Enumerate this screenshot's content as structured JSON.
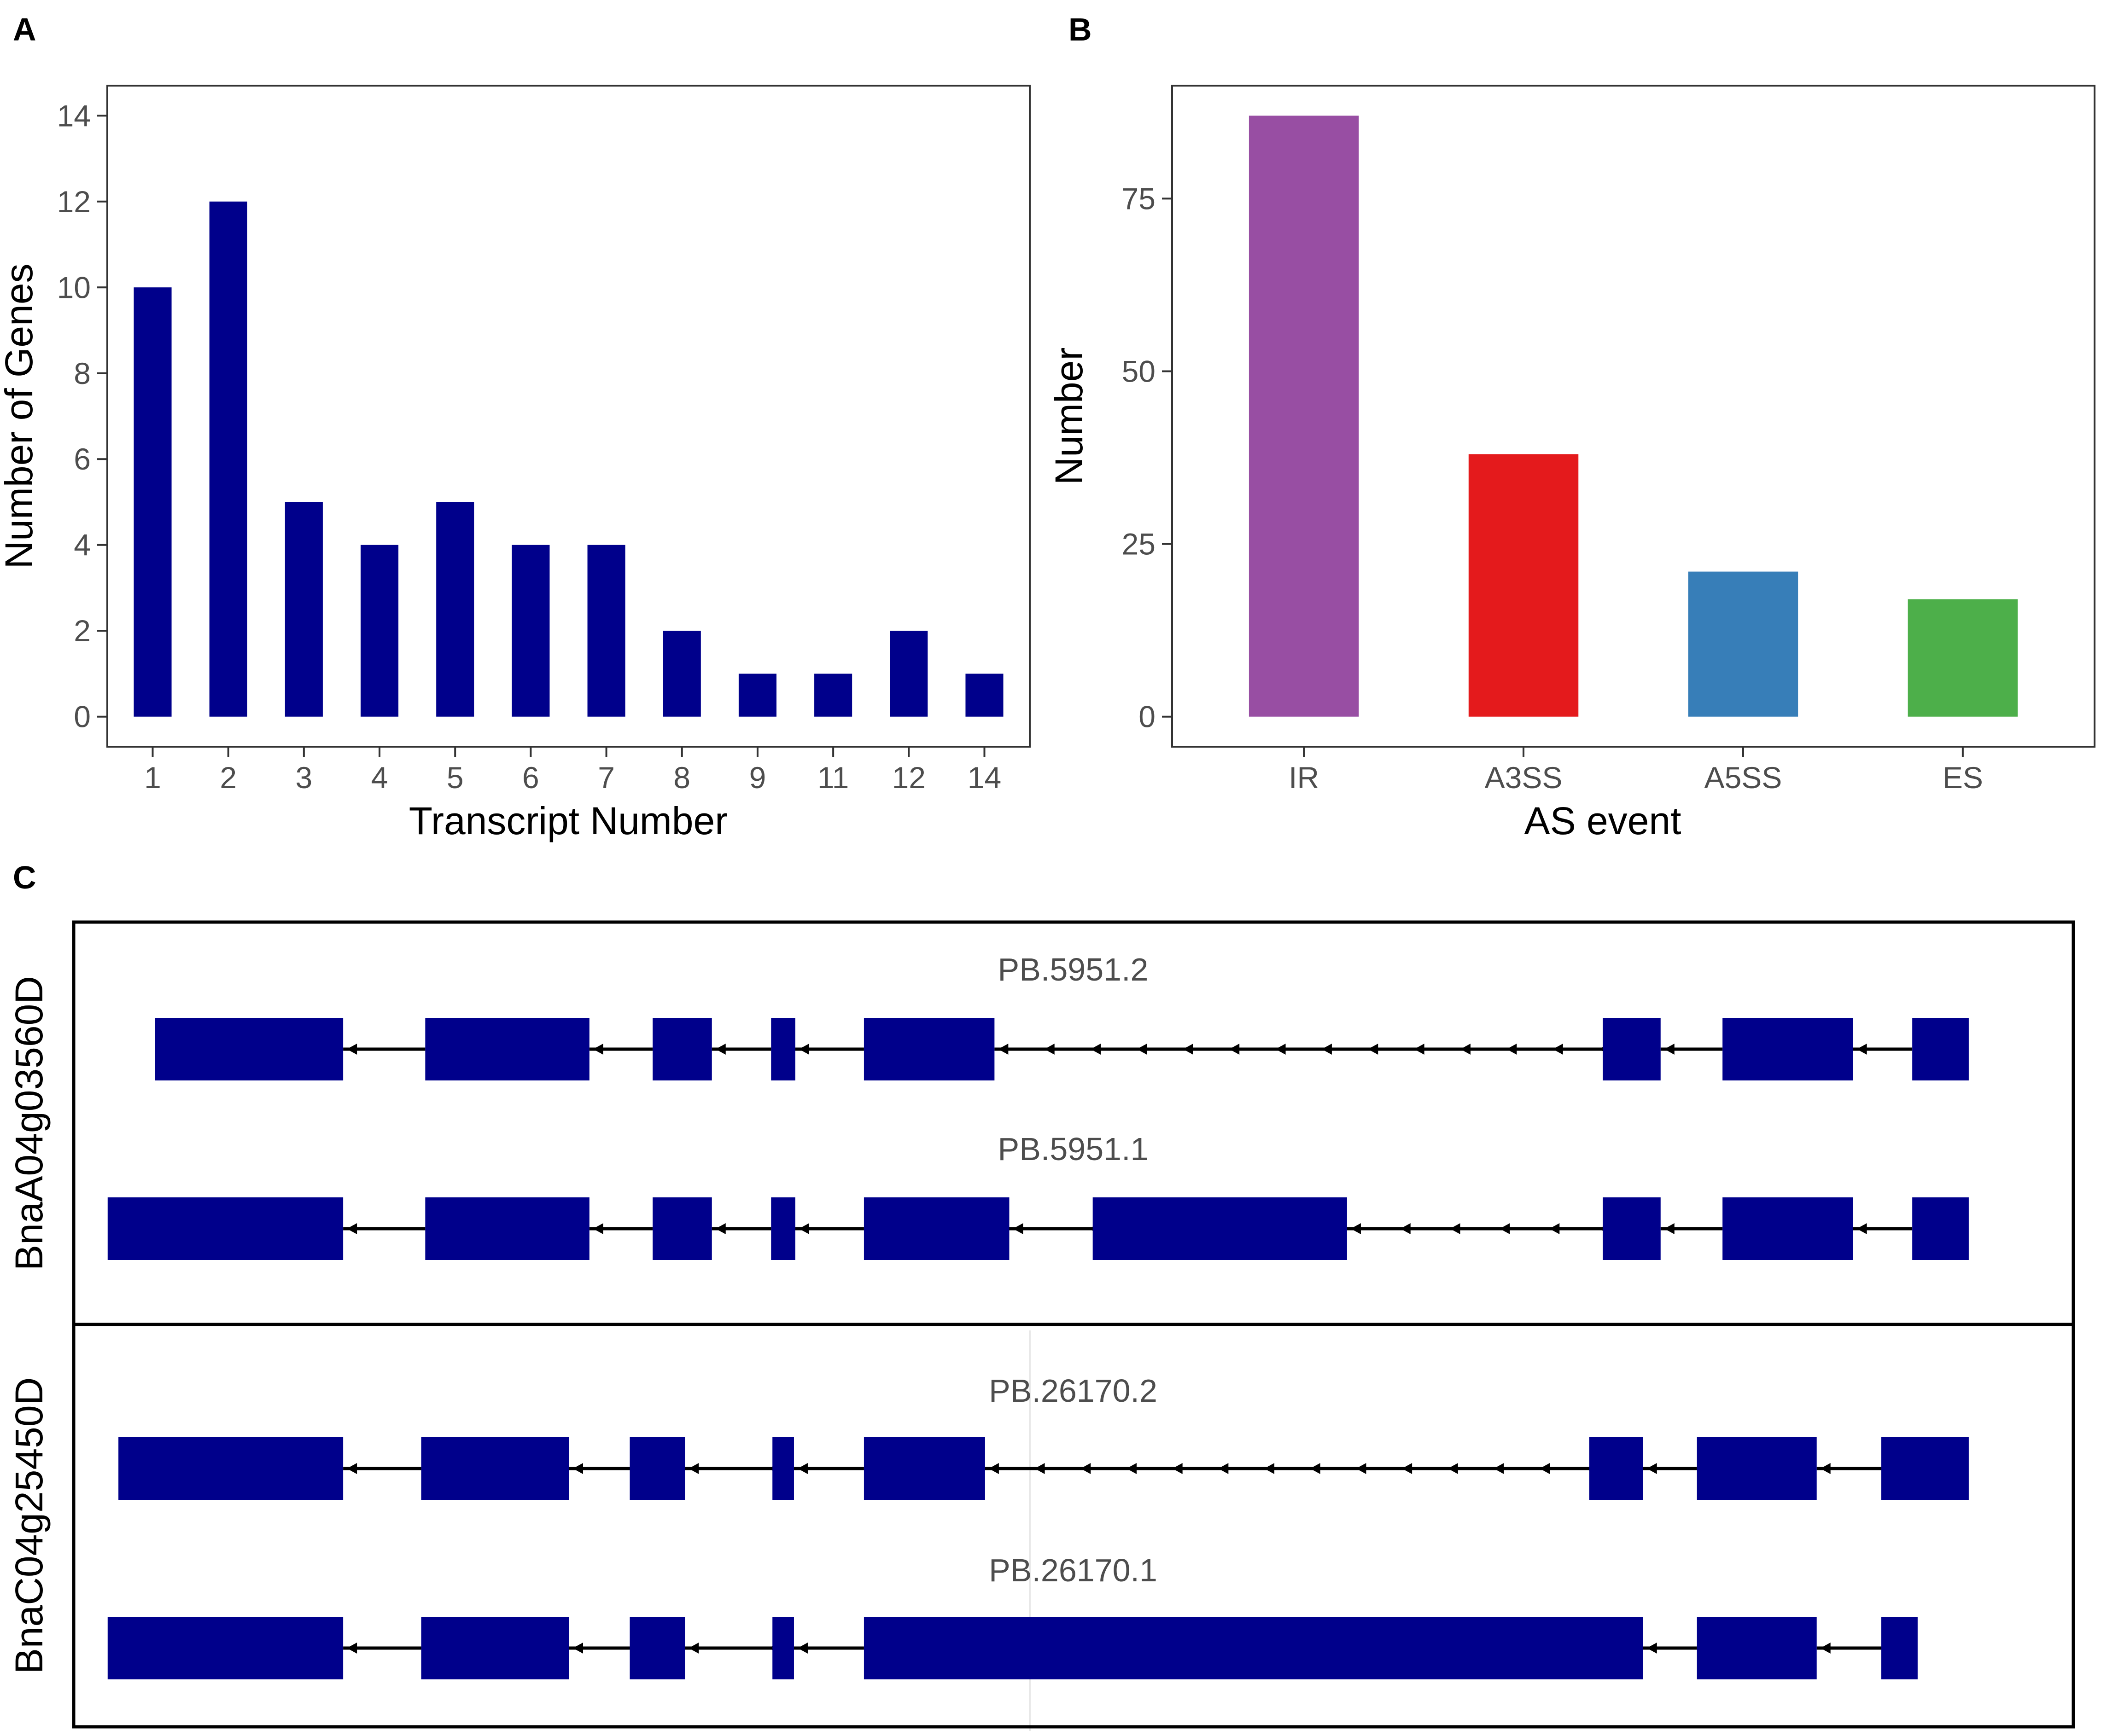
{
  "panel_labels": {
    "a": "A",
    "b": "B",
    "c": "C"
  },
  "colors": {
    "bar_a": "#00008B",
    "exon": "#00008B",
    "IR": "#984EA3",
    "A3SS": "#E41A1C",
    "A5SS": "#377EB8",
    "ES": "#4DAF4A"
  },
  "chart_data": [
    {
      "id": "A",
      "type": "bar",
      "title": "",
      "xlabel": "Transcript Number",
      "ylabel": "Number of Genes",
      "categories": [
        "1",
        "2",
        "3",
        "4",
        "5",
        "6",
        "7",
        "8",
        "9",
        "11",
        "12",
        "14"
      ],
      "values": [
        10,
        12,
        5,
        4,
        5,
        4,
        4,
        2,
        1,
        1,
        2,
        1
      ],
      "ylim": [
        -0.7,
        14.7
      ],
      "yticks": [
        "0",
        "2",
        "4",
        "6",
        "8",
        "10",
        "12",
        "14"
      ],
      "grid": false
    },
    {
      "id": "B",
      "type": "bar",
      "title": "",
      "xlabel": "AS event",
      "ylabel": "Number",
      "categories": [
        "IR",
        "A3SS",
        "A5SS",
        "ES"
      ],
      "values": [
        87,
        38,
        21,
        17
      ],
      "ylim": [
        -4.35,
        91.35
      ],
      "yticks": [
        "0",
        "25",
        "50",
        "75"
      ],
      "grid": false
    },
    {
      "id": "C",
      "type": "gene-structure",
      "genes": [
        {
          "name": "BnaA04g03560D",
          "isoforms": [
            {
              "name": "PB.5951.2",
              "exons": [
                [
                  115,
                  255
                ],
                [
                  316,
                  438
                ],
                [
                  485,
                  529
                ],
                [
                  573,
                  591
                ],
                [
                  642,
                  739
                ],
                [
                  1191,
                  1234
                ],
                [
                  1280,
                  1377
                ],
                [
                  1421,
                  1463
                ]
              ]
            },
            {
              "name": "PB.5951.1",
              "exons": [
                [
                  80,
                  255
                ],
                [
                  316,
                  438
                ],
                [
                  485,
                  529
                ],
                [
                  573,
                  591
                ],
                [
                  642,
                  750
                ],
                [
                  812,
                  1001
                ],
                [
                  1191,
                  1234
                ],
                [
                  1280,
                  1377
                ],
                [
                  1421,
                  1463
                ]
              ]
            }
          ]
        },
        {
          "name": "BnaC04g25450D",
          "isoforms": [
            {
              "name": "PB.26170.2",
              "exons": [
                [
                  88,
                  255
                ],
                [
                  313,
                  423
                ],
                [
                  468,
                  509
                ],
                [
                  574,
                  590
                ],
                [
                  642,
                  732
                ],
                [
                  1181,
                  1221
                ],
                [
                  1261,
                  1350
                ],
                [
                  1398,
                  1463
                ]
              ]
            },
            {
              "name": "PB.26170.1",
              "exons": [
                [
                  80,
                  255
                ],
                [
                  313,
                  423
                ],
                [
                  468,
                  509
                ],
                [
                  574,
                  590
                ],
                [
                  642,
                  1221
                ],
                [
                  1261,
                  1350
                ],
                [
                  1398,
                  1425
                ]
              ]
            }
          ]
        }
      ]
    }
  ]
}
